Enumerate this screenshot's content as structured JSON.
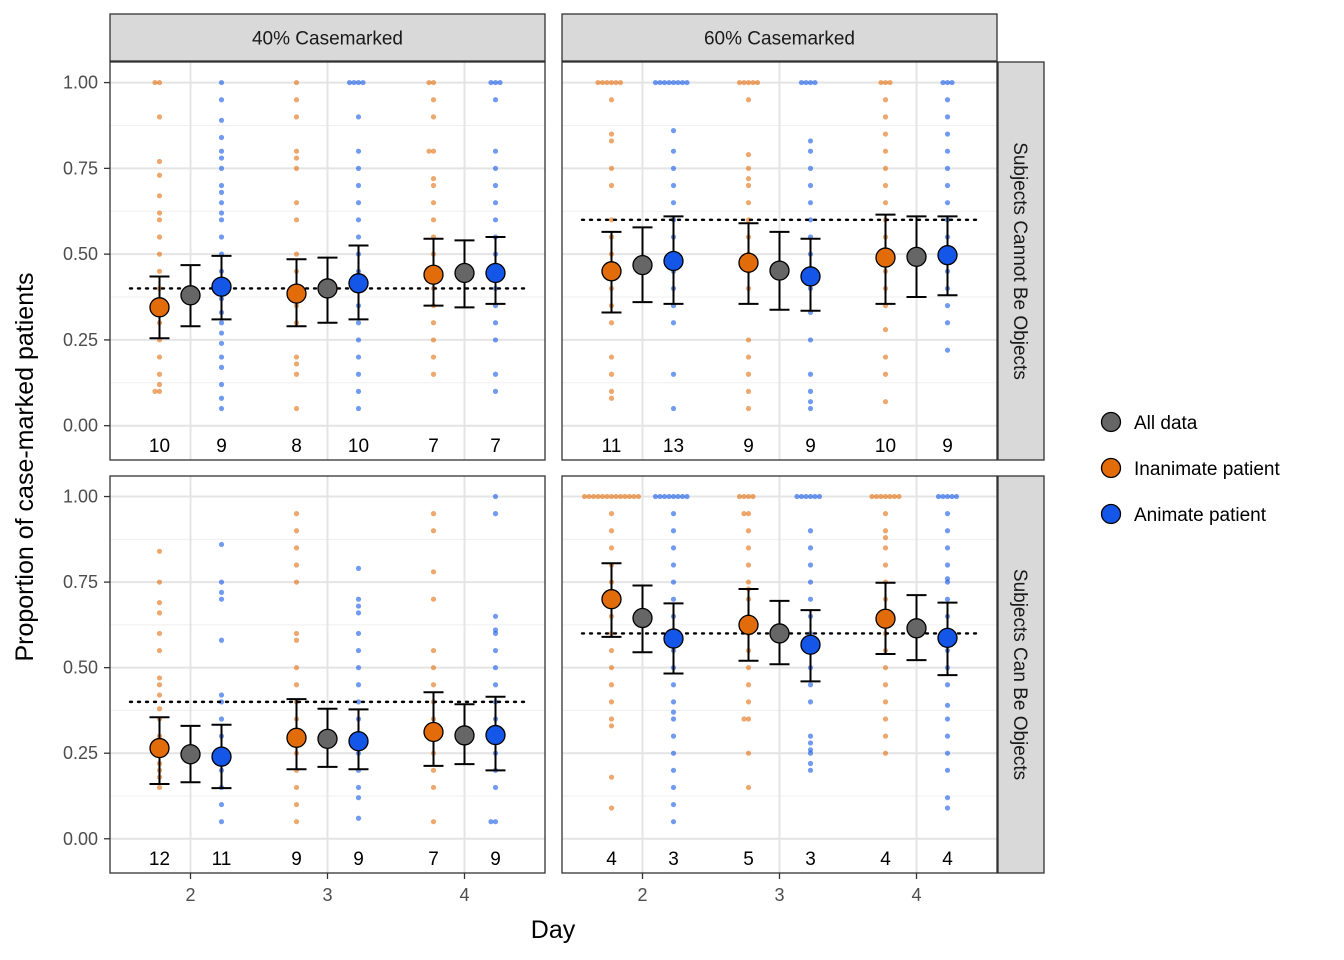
{
  "chart_data": {
    "type": "scatter",
    "xlabel": "Day",
    "ylabel": "Proportion of case-marked patients",
    "x_ticks": [
      "2",
      "3",
      "4"
    ],
    "y_ticks": [
      "0.00",
      "0.25",
      "0.50",
      "0.75",
      "1.00"
    ],
    "ylim": [
      -0.1,
      1.06
    ],
    "grid": true,
    "legend_position": "right",
    "colors": {
      "all": "#666666",
      "inanimate": "#E36C0A",
      "animate": "#1356E8"
    },
    "legend": [
      {
        "key": "all",
        "label": "All data"
      },
      {
        "key": "inanimate",
        "label": "Inanimate patient"
      },
      {
        "key": "animate",
        "label": "Animate patient"
      }
    ],
    "col_strips": [
      "40% Casemarked",
      "60% Casemarked"
    ],
    "row_strips": [
      "Subjects Cannot Be Objects",
      "Subjects Can Be Objects"
    ],
    "panels": [
      {
        "col": 0,
        "row": 0,
        "target": 0.4,
        "summary": [
          {
            "day": 2,
            "inanimate": [
              0.345,
              0.255,
              0.435
            ],
            "all": [
              0.38,
              0.29,
              0.468
            ],
            "animate": [
              0.405,
              0.31,
              0.495
            ]
          },
          {
            "day": 3,
            "inanimate": [
              0.385,
              0.29,
              0.485
            ],
            "all": [
              0.4,
              0.3,
              0.49
            ],
            "animate": [
              0.415,
              0.31,
              0.525
            ]
          },
          {
            "day": 4,
            "inanimate": [
              0.44,
              0.35,
              0.545
            ],
            "all": [
              0.445,
              0.345,
              0.54
            ],
            "animate": [
              0.445,
              0.355,
              0.55
            ]
          }
        ],
        "n": [
          {
            "day": 2,
            "inanimate": "10",
            "animate": "9"
          },
          {
            "day": 3,
            "inanimate": "8",
            "animate": "10"
          },
          {
            "day": 4,
            "inanimate": "7",
            "animate": "7"
          }
        ],
        "points": [
          {
            "day": 2,
            "group": "inanimate",
            "values": [
              1.0,
              1.0,
              0.9,
              0.77,
              0.73,
              0.67,
              0.62,
              0.6,
              0.55,
              0.5,
              0.45,
              0.4,
              0.35,
              0.3,
              0.25,
              0.2,
              0.15,
              0.12,
              0.1,
              0.1
            ]
          },
          {
            "day": 2,
            "group": "animate",
            "values": [
              1.0,
              0.95,
              0.89,
              0.84,
              0.8,
              0.78,
              0.75,
              0.7,
              0.68,
              0.65,
              0.62,
              0.6,
              0.55,
              0.5,
              0.45,
              0.4,
              0.37,
              0.33,
              0.3,
              0.27,
              0.24,
              0.2,
              0.17,
              0.12,
              0.08,
              0.05
            ]
          },
          {
            "day": 3,
            "group": "inanimate",
            "values": [
              1.0,
              0.95,
              0.9,
              0.8,
              0.78,
              0.75,
              0.65,
              0.6,
              0.5,
              0.45,
              0.35,
              0.3,
              0.2,
              0.18,
              0.15,
              0.05
            ]
          },
          {
            "day": 3,
            "group": "animate",
            "values": [
              1.0,
              1.0,
              1.0,
              1.0,
              0.9,
              0.8,
              0.75,
              0.7,
              0.65,
              0.6,
              0.55,
              0.5,
              0.45,
              0.4,
              0.35,
              0.3,
              0.25,
              0.2,
              0.15,
              0.1,
              0.05
            ]
          },
          {
            "day": 4,
            "group": "inanimate",
            "values": [
              1.0,
              1.0,
              0.95,
              0.9,
              0.8,
              0.8,
              0.72,
              0.7,
              0.65,
              0.6,
              0.55,
              0.5,
              0.45,
              0.4,
              0.35,
              0.3,
              0.25,
              0.2,
              0.15
            ]
          },
          {
            "day": 4,
            "group": "animate",
            "values": [
              1.0,
              1.0,
              1.0,
              0.95,
              0.8,
              0.75,
              0.7,
              0.65,
              0.6,
              0.55,
              0.5,
              0.45,
              0.4,
              0.35,
              0.3,
              0.25,
              0.15,
              0.1
            ]
          }
        ]
      },
      {
        "col": 1,
        "row": 0,
        "target": 0.6,
        "summary": [
          {
            "day": 2,
            "inanimate": [
              0.45,
              0.33,
              0.565
            ],
            "all": [
              0.468,
              0.36,
              0.578
            ],
            "animate": [
              0.48,
              0.355,
              0.61
            ]
          },
          {
            "day": 3,
            "inanimate": [
              0.475,
              0.355,
              0.59
            ],
            "all": [
              0.452,
              0.338,
              0.565
            ],
            "animate": [
              0.435,
              0.335,
              0.545
            ]
          },
          {
            "day": 4,
            "inanimate": [
              0.49,
              0.355,
              0.615
            ],
            "all": [
              0.492,
              0.375,
              0.61
            ],
            "animate": [
              0.497,
              0.38,
              0.61
            ]
          }
        ],
        "n": [
          {
            "day": 2,
            "inanimate": "11",
            "animate": "13"
          },
          {
            "day": 3,
            "inanimate": "9",
            "animate": "9"
          },
          {
            "day": 4,
            "inanimate": "10",
            "animate": "9"
          }
        ],
        "points": [
          {
            "day": 2,
            "group": "inanimate",
            "values": [
              1.0,
              1.0,
              1.0,
              1.0,
              1.0,
              1.0,
              0.95,
              0.85,
              0.83,
              0.75,
              0.7,
              0.6,
              0.55,
              0.5,
              0.45,
              0.4,
              0.35,
              0.3,
              0.2,
              0.15,
              0.1,
              0.08
            ]
          },
          {
            "day": 2,
            "group": "animate",
            "values": [
              1.0,
              1.0,
              1.0,
              1.0,
              1.0,
              1.0,
              1.0,
              1.0,
              0.86,
              0.8,
              0.75,
              0.7,
              0.65,
              0.6,
              0.55,
              0.5,
              0.45,
              0.4,
              0.35,
              0.3,
              0.15,
              0.05
            ]
          },
          {
            "day": 3,
            "group": "inanimate",
            "values": [
              1.0,
              1.0,
              1.0,
              1.0,
              1.0,
              0.95,
              0.79,
              0.75,
              0.72,
              0.7,
              0.65,
              0.6,
              0.55,
              0.5,
              0.45,
              0.4,
              0.25,
              0.2,
              0.15,
              0.1,
              0.05
            ]
          },
          {
            "day": 3,
            "group": "animate",
            "values": [
              1.0,
              1.0,
              1.0,
              1.0,
              0.83,
              0.8,
              0.75,
              0.7,
              0.65,
              0.6,
              0.55,
              0.5,
              0.45,
              0.4,
              0.33,
              0.25,
              0.15,
              0.1,
              0.07,
              0.05
            ]
          },
          {
            "day": 4,
            "group": "inanimate",
            "values": [
              1.0,
              1.0,
              1.0,
              0.95,
              0.9,
              0.85,
              0.8,
              0.75,
              0.7,
              0.65,
              0.6,
              0.55,
              0.5,
              0.45,
              0.4,
              0.35,
              0.28,
              0.2,
              0.15,
              0.07
            ]
          },
          {
            "day": 4,
            "group": "animate",
            "values": [
              1.0,
              1.0,
              1.0,
              0.95,
              0.9,
              0.85,
              0.8,
              0.75,
              0.7,
              0.65,
              0.6,
              0.55,
              0.5,
              0.45,
              0.4,
              0.35,
              0.3,
              0.22
            ]
          }
        ]
      },
      {
        "col": 0,
        "row": 1,
        "target": 0.4,
        "summary": [
          {
            "day": 2,
            "inanimate": [
              0.265,
              0.16,
              0.355
            ],
            "all": [
              0.247,
              0.165,
              0.33
            ],
            "animate": [
              0.24,
              0.148,
              0.333
            ]
          },
          {
            "day": 3,
            "inanimate": [
              0.295,
              0.203,
              0.408
            ],
            "all": [
              0.292,
              0.21,
              0.38
            ],
            "animate": [
              0.285,
              0.203,
              0.378
            ]
          },
          {
            "day": 4,
            "inanimate": [
              0.312,
              0.213,
              0.428
            ],
            "all": [
              0.302,
              0.218,
              0.393
            ],
            "animate": [
              0.303,
              0.2,
              0.415
            ]
          }
        ],
        "n": [
          {
            "day": 2,
            "inanimate": "12",
            "animate": "11"
          },
          {
            "day": 3,
            "inanimate": "9",
            "animate": "9"
          },
          {
            "day": 4,
            "inanimate": "7",
            "animate": "9"
          }
        ],
        "points": [
          {
            "day": 2,
            "group": "inanimate",
            "values": [
              0.84,
              0.75,
              0.69,
              0.66,
              0.6,
              0.55,
              0.47,
              0.45,
              0.42,
              0.38,
              0.35,
              0.3,
              0.26,
              0.25,
              0.22,
              0.2,
              0.18,
              0.15
            ]
          },
          {
            "day": 2,
            "group": "animate",
            "values": [
              0.86,
              0.75,
              0.72,
              0.7,
              0.58,
              0.42,
              0.4,
              0.35,
              0.3,
              0.25,
              0.22,
              0.2,
              0.15,
              0.1,
              0.05
            ]
          },
          {
            "day": 3,
            "group": "inanimate",
            "values": [
              0.95,
              0.9,
              0.85,
              0.8,
              0.75,
              0.6,
              0.58,
              0.5,
              0.45,
              0.4,
              0.35,
              0.3,
              0.25,
              0.2,
              0.15,
              0.1,
              0.05
            ]
          },
          {
            "day": 3,
            "group": "animate",
            "values": [
              0.79,
              0.7,
              0.68,
              0.66,
              0.6,
              0.55,
              0.5,
              0.45,
              0.4,
              0.35,
              0.3,
              0.25,
              0.2,
              0.15,
              0.12,
              0.06
            ]
          },
          {
            "day": 4,
            "group": "inanimate",
            "values": [
              0.95,
              0.9,
              0.78,
              0.7,
              0.55,
              0.5,
              0.45,
              0.4,
              0.35,
              0.3,
              0.25,
              0.2,
              0.15,
              0.05
            ]
          },
          {
            "day": 4,
            "group": "animate",
            "values": [
              1.0,
              0.95,
              0.65,
              0.61,
              0.6,
              0.55,
              0.5,
              0.45,
              0.4,
              0.35,
              0.3,
              0.25,
              0.2,
              0.15,
              0.05,
              0.05
            ]
          }
        ]
      },
      {
        "col": 1,
        "row": 1,
        "target": 0.6,
        "summary": [
          {
            "day": 2,
            "inanimate": [
              0.7,
              0.59,
              0.805
            ],
            "all": [
              0.645,
              0.545,
              0.74
            ],
            "animate": [
              0.585,
              0.483,
              0.688
            ]
          },
          {
            "day": 3,
            "inanimate": [
              0.625,
              0.52,
              0.73
            ],
            "all": [
              0.6,
              0.51,
              0.695
            ],
            "animate": [
              0.567,
              0.46,
              0.668
            ]
          },
          {
            "day": 4,
            "inanimate": [
              0.643,
              0.54,
              0.748
            ],
            "all": [
              0.615,
              0.522,
              0.712
            ],
            "animate": [
              0.587,
              0.478,
              0.69
            ]
          }
        ],
        "n": [
          {
            "day": 2,
            "inanimate": "4",
            "animate": "3"
          },
          {
            "day": 3,
            "inanimate": "5",
            "animate": "3"
          },
          {
            "day": 4,
            "inanimate": "4",
            "animate": "4"
          }
        ],
        "points": [
          {
            "day": 2,
            "group": "inanimate",
            "values": [
              1.0,
              1.0,
              1.0,
              1.0,
              1.0,
              1.0,
              1.0,
              1.0,
              1.0,
              1.0,
              1.0,
              1.0,
              1.0,
              0.95,
              0.9,
              0.85,
              0.8,
              0.75,
              0.7,
              0.65,
              0.6,
              0.55,
              0.5,
              0.45,
              0.4,
              0.35,
              0.33,
              0.18,
              0.09
            ]
          },
          {
            "day": 2,
            "group": "animate",
            "values": [
              1.0,
              1.0,
              1.0,
              1.0,
              1.0,
              1.0,
              1.0,
              1.0,
              0.95,
              0.9,
              0.85,
              0.8,
              0.75,
              0.7,
              0.65,
              0.6,
              0.55,
              0.5,
              0.45,
              0.4,
              0.37,
              0.35,
              0.3,
              0.25,
              0.2,
              0.15,
              0.1,
              0.05
            ]
          },
          {
            "day": 3,
            "group": "inanimate",
            "values": [
              1.0,
              1.0,
              1.0,
              1.0,
              0.95,
              0.95,
              0.9,
              0.85,
              0.8,
              0.75,
              0.73,
              0.7,
              0.65,
              0.6,
              0.55,
              0.5,
              0.45,
              0.4,
              0.35,
              0.35,
              0.25,
              0.15
            ]
          },
          {
            "day": 3,
            "group": "animate",
            "values": [
              1.0,
              1.0,
              1.0,
              1.0,
              1.0,
              1.0,
              0.9,
              0.85,
              0.8,
              0.75,
              0.7,
              0.65,
              0.6,
              0.55,
              0.5,
              0.45,
              0.4,
              0.3,
              0.28,
              0.26,
              0.25,
              0.22,
              0.2
            ]
          },
          {
            "day": 4,
            "group": "inanimate",
            "values": [
              1.0,
              1.0,
              1.0,
              1.0,
              1.0,
              1.0,
              1.0,
              0.95,
              0.9,
              0.88,
              0.85,
              0.8,
              0.75,
              0.7,
              0.65,
              0.6,
              0.55,
              0.5,
              0.45,
              0.4,
              0.35,
              0.3,
              0.25
            ]
          },
          {
            "day": 4,
            "group": "animate",
            "values": [
              1.0,
              1.0,
              1.0,
              1.0,
              1.0,
              0.95,
              0.9,
              0.85,
              0.8,
              0.76,
              0.75,
              0.7,
              0.65,
              0.6,
              0.55,
              0.5,
              0.45,
              0.39,
              0.35,
              0.3,
              0.25,
              0.2,
              0.12,
              0.09
            ]
          }
        ]
      }
    ]
  }
}
